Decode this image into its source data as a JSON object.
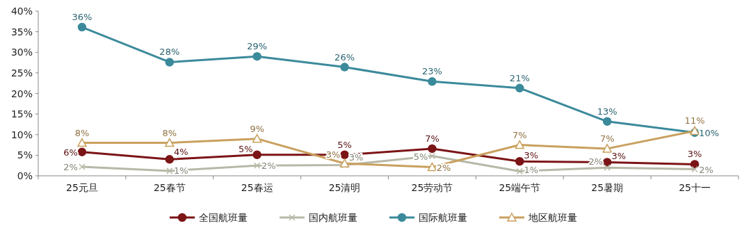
{
  "chart_data": {
    "type": "line",
    "categories": [
      "25元旦",
      "25春节",
      "25春运",
      "25清明",
      "25劳动节",
      "25端午节",
      "25暑期",
      "25十一"
    ],
    "ylim": [
      0,
      40
    ],
    "yticks": [
      {
        "value": 0,
        "label": "0%"
      },
      {
        "value": 5,
        "label": "5%"
      },
      {
        "value": 10,
        "label": "10%"
      },
      {
        "value": 15,
        "label": "15%"
      },
      {
        "value": 20,
        "label": "20%"
      },
      {
        "value": 25,
        "label": "25%"
      },
      {
        "value": 30,
        "label": "30%"
      },
      {
        "value": 35,
        "label": "35%"
      },
      {
        "value": 40,
        "label": "40%"
      }
    ],
    "legend": "bottom",
    "grid": false,
    "line_style": "solid",
    "series": [
      {
        "name": "全国航班量",
        "color": "#7b1416",
        "marker": "circle",
        "values": [
          5.8,
          4.0,
          5.1,
          5.1,
          6.6,
          3.5,
          3.3,
          2.8
        ],
        "value_labels": [
          "6%",
          "4%",
          "5%",
          "5%",
          "7%",
          "3%",
          "3%",
          "3%"
        ]
      },
      {
        "name": "国内航班量",
        "color": "#b8b8a8",
        "marker": "cross",
        "values": [
          2.2,
          1.2,
          2.5,
          2.6,
          4.8,
          1.1,
          2.0,
          1.6
        ],
        "value_labels": [
          "2%",
          "1%",
          "2%",
          "3%",
          "5%",
          "1%",
          "2%",
          "2%"
        ]
      },
      {
        "name": "国际航班量",
        "color": "#3b8a9b",
        "marker": "circle",
        "values": [
          36.1,
          27.6,
          29.0,
          26.4,
          22.9,
          21.3,
          13.2,
          10.5
        ],
        "value_labels": [
          "36%",
          "28%",
          "29%",
          "26%",
          "23%",
          "21%",
          "13%",
          "10%"
        ]
      },
      {
        "name": "地区航班量",
        "color": "#c9a05e",
        "marker": "triangle",
        "values": [
          8.0,
          8.0,
          9.0,
          3.0,
          2.1,
          7.5,
          6.6,
          10.9
        ],
        "value_labels": [
          "8%",
          "8%",
          "9%",
          "3%",
          "2%",
          "7%",
          "7%",
          "11%"
        ]
      }
    ]
  }
}
